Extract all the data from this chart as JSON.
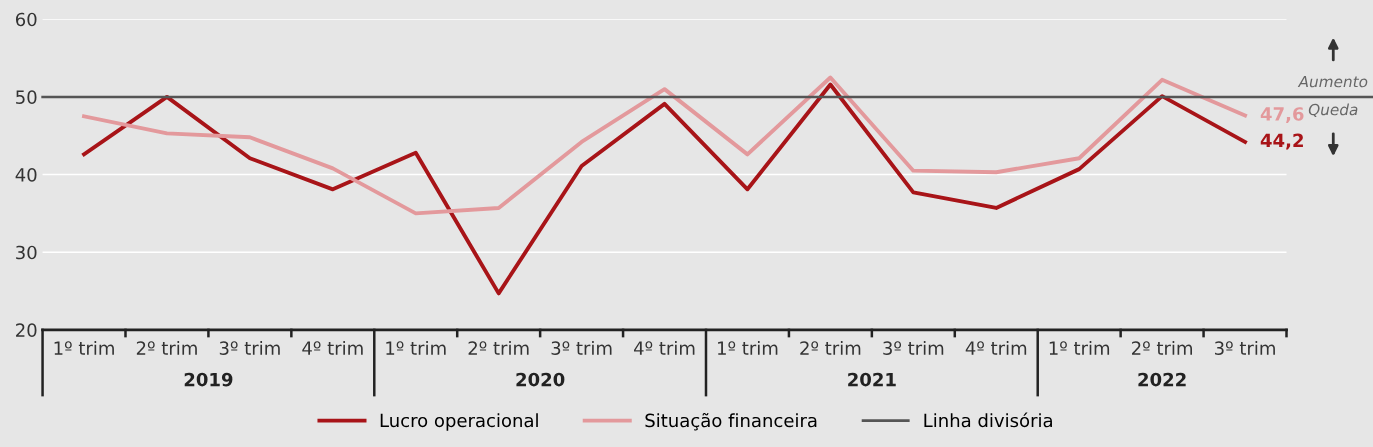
{
  "chart_data": {
    "type": "line",
    "categories": [
      "1º trim",
      "2º trim",
      "3º trim",
      "4º trim",
      "1º trim",
      "2º trim",
      "3º trim",
      "4º trim",
      "1º trim",
      "2º trim",
      "3º trim",
      "4º trim",
      "1º trim",
      "2º trim",
      "3º trim"
    ],
    "series": [
      {
        "name": "Lucro operacional",
        "color": "#a81418",
        "values": [
          42.6,
          50.0,
          42.1,
          38.1,
          42.8,
          24.7,
          41.1,
          49.1,
          38.1,
          51.6,
          37.7,
          35.7,
          40.7,
          50.1,
          44.2
        ],
        "value_labels": [
          null,
          null,
          null,
          null,
          null,
          null,
          null,
          null,
          null,
          null,
          null,
          null,
          null,
          null,
          "44,2"
        ]
      },
      {
        "name": "Situação financeira",
        "color": "#e3999c",
        "values": [
          47.5,
          45.3,
          44.8,
          40.8,
          35.0,
          35.7,
          44.2,
          51.0,
          42.6,
          52.5,
          40.5,
          40.3,
          42.1,
          52.2,
          47.6
        ],
        "value_labels": [
          null,
          null,
          null,
          null,
          null,
          null,
          null,
          null,
          null,
          null,
          null,
          null,
          null,
          null,
          "47,6"
        ]
      }
    ],
    "ref_lines": [
      {
        "axis": "y",
        "value": 50,
        "label": "Linha divisória",
        "color": "#555555"
      }
    ],
    "annotations": [
      "2019",
      "2020",
      "2021",
      "2022",
      {
        "text": "Aumento",
        "y": 50
      },
      {
        "text": "Queda",
        "y": 50
      }
    ],
    "ylim": [
      20,
      60
    ],
    "yticks": [
      20,
      30,
      40,
      50,
      60
    ],
    "grid": "y",
    "legend": "bottom",
    "marker": "none",
    "line_style": "solid"
  }
}
